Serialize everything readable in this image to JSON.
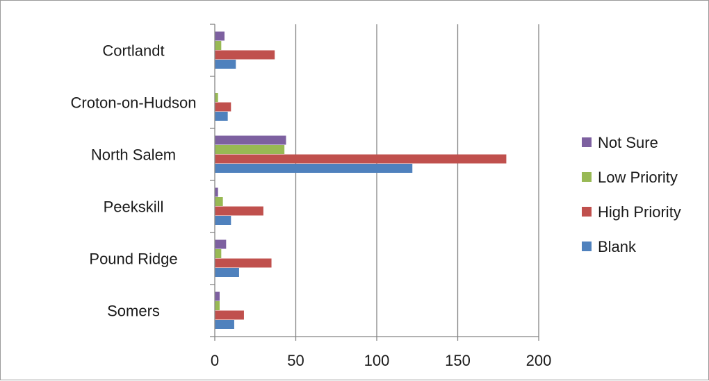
{
  "chart_data": {
    "type": "bar",
    "orientation": "horizontal",
    "categories": [
      "Cortlandt",
      "Croton-on-Hudson",
      "North Salem",
      "Peekskill",
      "Pound Ridge",
      "Somers"
    ],
    "series": [
      {
        "name": "Not Sure",
        "color": "#7d60a0",
        "values": [
          6,
          0,
          44,
          2,
          7,
          3
        ]
      },
      {
        "name": "Low Priority",
        "color": "#98b954",
        "values": [
          4,
          2,
          43,
          5,
          4,
          3
        ]
      },
      {
        "name": "High Priority",
        "color": "#c0504d",
        "values": [
          37,
          10,
          180,
          30,
          35,
          18
        ]
      },
      {
        "name": "Blank",
        "color": "#4f81bd",
        "values": [
          13,
          8,
          122,
          10,
          15,
          12
        ]
      }
    ],
    "xlim": [
      0,
      200
    ],
    "x_ticks": [
      0,
      50,
      100,
      150,
      200
    ],
    "grid": true,
    "legend_position": "right"
  }
}
